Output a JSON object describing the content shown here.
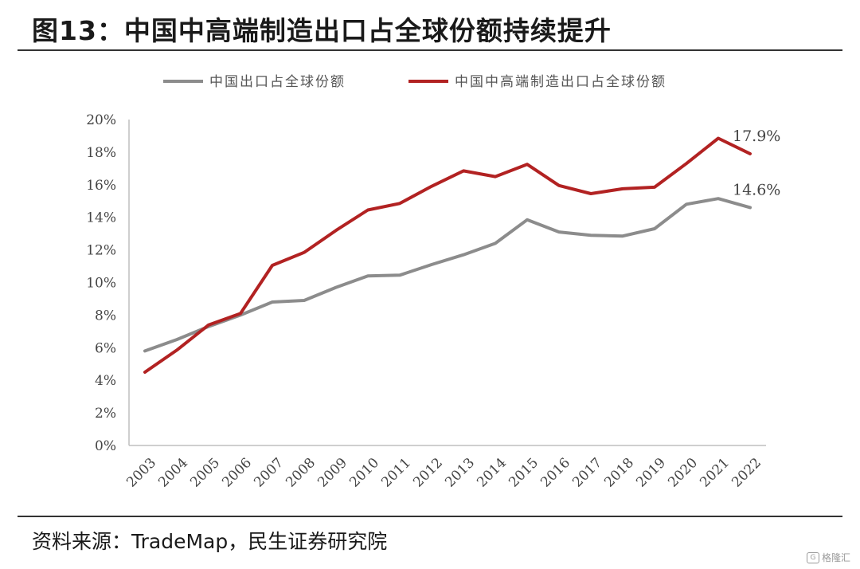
{
  "figure": {
    "title": "图13：中国中高端制造出口占全球份额持续提升",
    "source": "资料来源：TradeMap，民生证券研究院",
    "watermark": "格隆汇"
  },
  "chart_data": {
    "type": "line",
    "title": "",
    "xlabel": "",
    "ylabel": "",
    "x": [
      "2003",
      "2004",
      "2005",
      "2006",
      "2007",
      "2008",
      "2009",
      "2010",
      "2011",
      "2012",
      "2013",
      "2014",
      "2015",
      "2016",
      "2017",
      "2018",
      "2019",
      "2020",
      "2021",
      "2022"
    ],
    "series": [
      {
        "name": "中国出口占全球份额",
        "color": "#8c8c8c",
        "values": [
          5.8,
          6.5,
          7.3,
          8.0,
          8.8,
          8.9,
          9.7,
          10.4,
          10.45,
          11.1,
          11.7,
          12.4,
          13.85,
          13.1,
          12.9,
          12.85,
          13.3,
          14.8,
          15.15,
          14.6
        ]
      },
      {
        "name": "中国中高端制造出口占全球份额",
        "color": "#b22222",
        "values": [
          4.5,
          5.85,
          7.4,
          8.1,
          11.05,
          11.85,
          13.2,
          14.45,
          14.85,
          15.9,
          16.85,
          16.5,
          17.25,
          15.95,
          15.45,
          15.75,
          15.85,
          17.3,
          18.85,
          17.9
        ]
      }
    ],
    "yticks": [
      "0%",
      "2%",
      "4%",
      "6%",
      "8%",
      "10%",
      "12%",
      "14%",
      "16%",
      "18%",
      "20%"
    ],
    "ylim": [
      0,
      20
    ],
    "grid": false,
    "legend_position": "top",
    "annotations": [
      {
        "series": 1,
        "index": 19,
        "text": "17.9%"
      },
      {
        "series": 0,
        "index": 19,
        "text": "14.6%"
      }
    ]
  }
}
